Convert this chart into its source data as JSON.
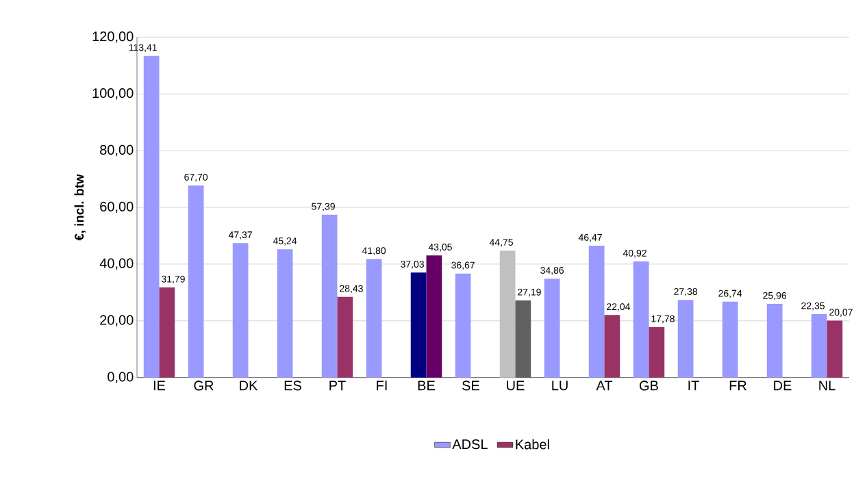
{
  "chart_data": {
    "type": "bar",
    "ylabel": "€, incl. btw",
    "categories": [
      "IE",
      "GR",
      "DK",
      "ES",
      "PT",
      "FI",
      "BE",
      "SE",
      "UE",
      "LU",
      "AT",
      "GB",
      "IT",
      "FR",
      "DE",
      "NL"
    ],
    "series": [
      {
        "name": "ADSL",
        "color": "#9999ff",
        "colors": [
          "#9999ff",
          "#9999ff",
          "#9999ff",
          "#9999ff",
          "#9999ff",
          "#9999ff",
          "#000080",
          "#9999ff",
          "#c0c0c0",
          "#9999ff",
          "#9999ff",
          "#9999ff",
          "#9999ff",
          "#9999ff",
          "#9999ff",
          "#9999ff"
        ],
        "values": [
          113.41,
          67.7,
          47.37,
          45.24,
          57.39,
          41.8,
          37.03,
          36.67,
          44.75,
          34.86,
          46.47,
          40.92,
          27.38,
          26.74,
          25.96,
          22.35
        ],
        "value_labels": [
          "113,41",
          "67,70",
          "47,37",
          "45,24",
          "57,39",
          "41,80",
          "37,03",
          "36,67",
          "44,75",
          "34,86",
          "46,47",
          "40,92",
          "27,38",
          "26,74",
          "25,96",
          "22,35"
        ]
      },
      {
        "name": "Kabel",
        "color": "#993366",
        "colors": [
          "#993366",
          "#993366",
          "#993366",
          "#993366",
          "#993366",
          "#993366",
          "#660066",
          "#993366",
          "#606060",
          "#993366",
          "#993366",
          "#993366",
          "#993366",
          "#993366",
          "#993366",
          "#993366"
        ],
        "values": [
          31.79,
          null,
          null,
          null,
          28.43,
          null,
          43.05,
          null,
          27.19,
          null,
          22.04,
          17.78,
          null,
          null,
          null,
          20.07
        ],
        "value_labels": [
          "31,79",
          null,
          null,
          null,
          "28,43",
          null,
          "43,05",
          null,
          "27,19",
          null,
          "22,04",
          "17,78",
          null,
          null,
          null,
          "20,07"
        ]
      }
    ],
    "ylim": [
      0,
      120
    ],
    "yticks": [
      {
        "value": 0,
        "label": "0,00"
      },
      {
        "value": 20,
        "label": "20,00"
      },
      {
        "value": 40,
        "label": "40,00"
      },
      {
        "value": 60,
        "label": "60,00"
      },
      {
        "value": 80,
        "label": "80,00"
      },
      {
        "value": 100,
        "label": "100,00"
      },
      {
        "value": 120,
        "label": "120,00"
      }
    ],
    "grid": "y",
    "legend": "bottom"
  }
}
